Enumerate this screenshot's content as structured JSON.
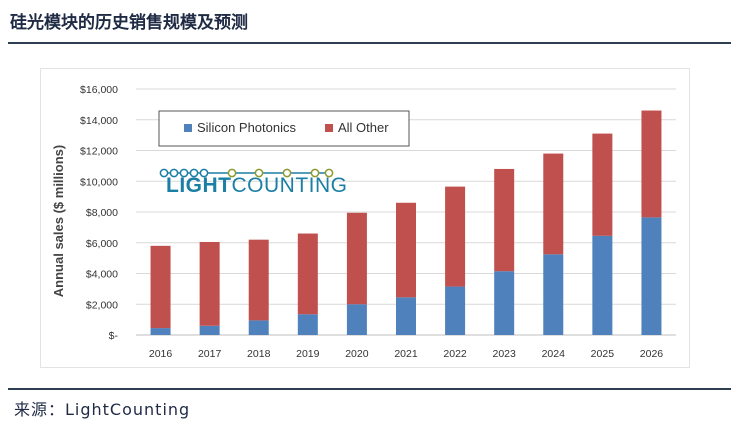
{
  "header": {
    "title": "硅光模块的历史销售规模及预测"
  },
  "footer": {
    "source": "来源：LightCounting"
  },
  "logo": {
    "text_light": "LIGHT",
    "text_counting": "COUNTING",
    "colors": {
      "blue": "#1b7fa5",
      "olive": "#8d9a2f"
    }
  },
  "colors": {
    "silicon": "#4f81bd",
    "other": "#c0504d",
    "axis_text": "#333333",
    "grid": "#d9d9d9"
  },
  "chart_data": {
    "type": "bar",
    "stacked": true,
    "ylabel": "Annual sales ($ millions)",
    "ylim": [
      0,
      16000
    ],
    "yticks": [
      0,
      2000,
      4000,
      6000,
      8000,
      10000,
      12000,
      14000,
      16000
    ],
    "ytick_labels": [
      "$-",
      "$2,000",
      "$4,000",
      "$6,000",
      "$8,000",
      "$10,000",
      "$12,000",
      "$14,000",
      "$16,000"
    ],
    "categories": [
      "2016",
      "2017",
      "2018",
      "2019",
      "2020",
      "2021",
      "2022",
      "2023",
      "2024",
      "2025",
      "2026"
    ],
    "series": [
      {
        "name": "Silicon Photonics",
        "color": "#4f81bd",
        "values": [
          450,
          600,
          950,
          1350,
          2000,
          2450,
          3150,
          4150,
          5250,
          6450,
          7650
        ]
      },
      {
        "name": "All Other",
        "color": "#c0504d",
        "values": [
          5350,
          5450,
          5250,
          5250,
          5950,
          6150,
          6500,
          6650,
          6550,
          6650,
          6950
        ]
      }
    ],
    "legend_position": "top-left",
    "grid": true
  }
}
